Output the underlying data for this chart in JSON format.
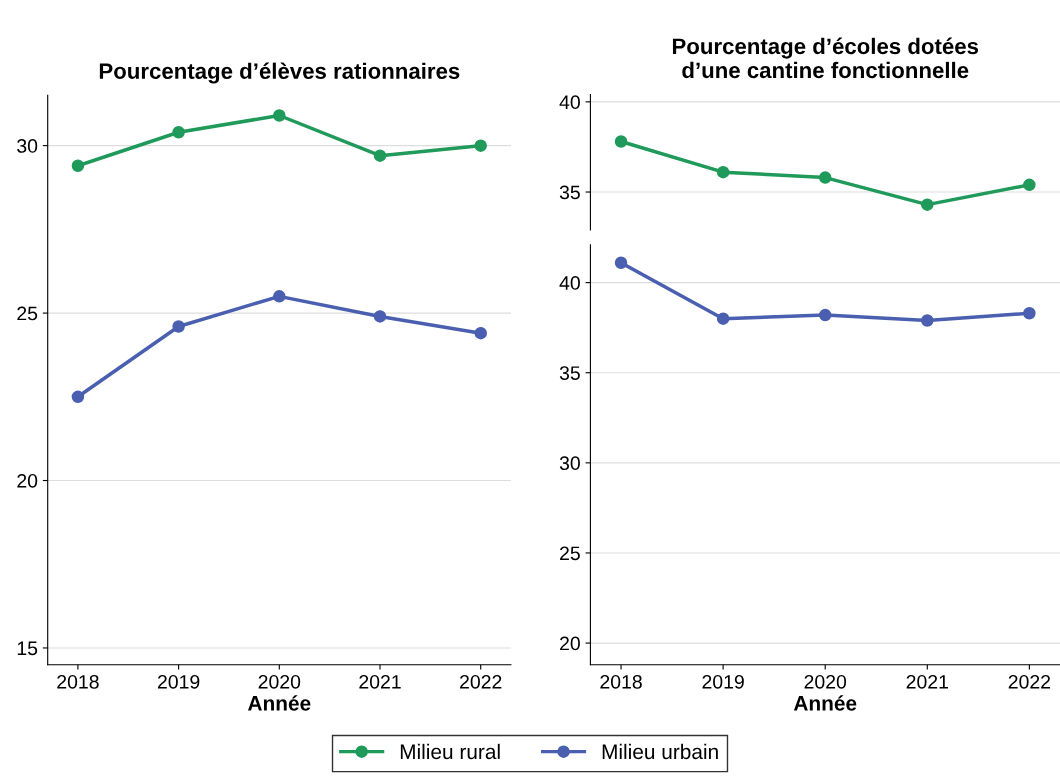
{
  "chart_data": [
    {
      "type": "line",
      "title": "Pourcentage d’élèves rationnaires",
      "xlabel": "Année",
      "categories": [
        "2018",
        "2019",
        "2020",
        "2021",
        "2022"
      ],
      "series": [
        {
          "name": "Milieu rural",
          "color": "#1f9a5a",
          "values": [
            29.4,
            30.4,
            30.9,
            29.7,
            30.0
          ]
        },
        {
          "name": "Milieu urbain",
          "color": "#4a5fb0",
          "values": [
            22.5,
            24.6,
            25.5,
            24.9,
            24.4
          ]
        }
      ],
      "ylim": [
        14.5,
        31.5
      ],
      "yticks": [
        15,
        20,
        25,
        30
      ],
      "grid": "y",
      "marker": "circle",
      "line_style": "solid",
      "legend": "bottom"
    },
    {
      "type": "line",
      "title": "Pourcentage d’écoles dotées\nd’une cantine fonctionnelle",
      "categories": [
        "2018",
        "2019",
        "2020",
        "2021",
        "2022"
      ],
      "series": [
        {
          "name": "Milieu rural",
          "color": "#1f9a5a",
          "values": [
            37.8,
            36.1,
            35.8,
            34.3,
            35.4
          ]
        }
      ],
      "ylim": [
        32.9,
        40.4
      ],
      "yticks": [
        35,
        40
      ],
      "grid": "y",
      "marker": "circle",
      "line_style": "solid",
      "tick_labels": "y",
      "legend": "bottom"
    },
    {
      "type": "line",
      "xlabel": "Année",
      "categories": [
        "2018",
        "2019",
        "2020",
        "2021",
        "2022"
      ],
      "series": [
        {
          "name": "Milieu urbain",
          "color": "#4a5fb0",
          "values": [
            41.1,
            38.0,
            38.2,
            37.9,
            38.3
          ]
        }
      ],
      "ylim": [
        18.8,
        42.1
      ],
      "yticks": [
        20,
        25,
        30,
        35,
        40
      ],
      "grid": "y",
      "marker": "circle",
      "line_style": "solid",
      "legend": "bottom"
    }
  ]
}
